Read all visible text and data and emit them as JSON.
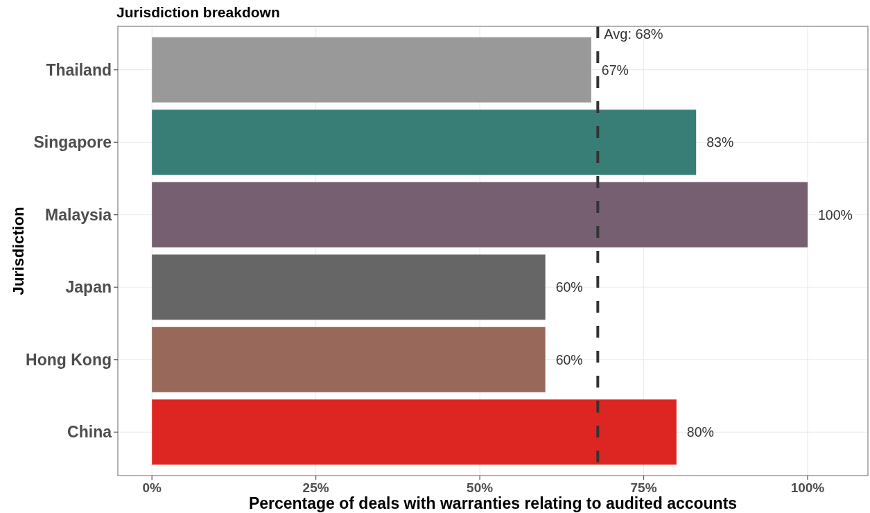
{
  "chart_data": {
    "type": "bar",
    "orientation": "horizontal",
    "title": "Jurisdiction breakdown",
    "xlabel": "Percentage of deals with warranties relating to audited accounts",
    "ylabel": "Jurisdiction",
    "categories": [
      "Thailand",
      "Singapore",
      "Malaysia",
      "Japan",
      "Hong Kong",
      "China"
    ],
    "values": [
      67,
      83,
      100,
      60,
      60,
      80
    ],
    "colors": [
      "#999999",
      "#387e77",
      "#765f71",
      "#666666",
      "#98695a",
      "#dd2621"
    ],
    "value_labels": [
      "67%",
      "83%",
      "100%",
      "60%",
      "60%",
      "80%"
    ],
    "xlim": [
      -5.2,
      109.2
    ],
    "xticks": [
      {
        "value": 0,
        "label": "0%"
      },
      {
        "value": 25,
        "label": "25%"
      },
      {
        "value": 50,
        "label": "50%"
      },
      {
        "value": 75,
        "label": "75%"
      },
      {
        "value": 100,
        "label": "100%"
      }
    ],
    "grid": true,
    "ref_lines": [
      {
        "axis": "x",
        "value": 68,
        "label": "Avg: 68%",
        "color": "#333333",
        "line_style": "dashed"
      }
    ]
  }
}
